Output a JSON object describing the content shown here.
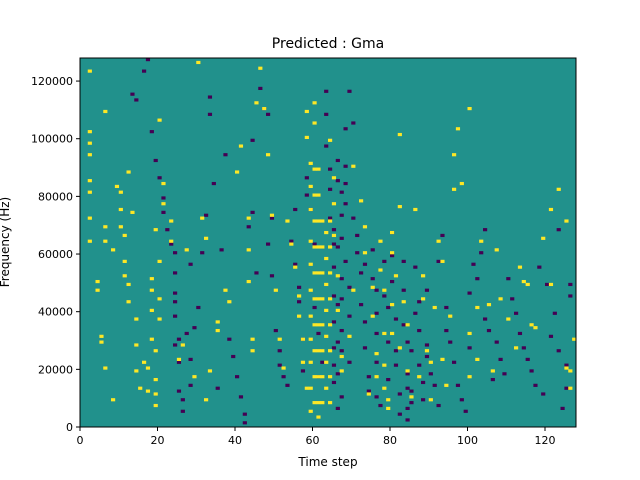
{
  "colors": {
    "background": "#21918c",
    "low": "#440154",
    "high": "#fde725",
    "axis": "#000000"
  },
  "chart_data": {
    "type": "heatmap",
    "title": "Predicted : Gma",
    "xlabel": "Time step",
    "ylabel": "Frequency (Hz)",
    "xlim": [
      0,
      128
    ],
    "ylim": [
      0,
      128000
    ],
    "xticks": [
      0,
      20,
      40,
      60,
      80,
      100,
      120
    ],
    "yticks": [
      0,
      20000,
      40000,
      60000,
      80000,
      100000,
      120000
    ],
    "grid": false,
    "legend": "none",
    "time_steps": 128,
    "frequency_bins": 128,
    "background_value": 0,
    "cell_values": {
      "-1": "low",
      "0": "background",
      "1": "high"
    },
    "high_cells": [
      [
        2,
        102
      ],
      [
        2,
        98
      ],
      [
        2,
        94
      ],
      [
        2,
        85
      ],
      [
        2,
        81
      ],
      [
        2,
        72
      ],
      [
        2,
        64
      ],
      [
        2,
        123
      ],
      [
        4,
        50
      ],
      [
        4,
        47
      ],
      [
        5,
        31
      ],
      [
        5,
        29
      ],
      [
        6,
        20
      ],
      [
        6,
        109
      ],
      [
        6,
        69
      ],
      [
        6,
        64
      ],
      [
        8,
        61
      ],
      [
        8,
        9
      ],
      [
        9,
        83
      ],
      [
        10,
        81
      ],
      [
        10,
        75
      ],
      [
        10,
        69
      ],
      [
        11,
        66
      ],
      [
        11,
        57
      ],
      [
        11,
        52
      ],
      [
        12,
        49
      ],
      [
        12,
        43
      ],
      [
        12,
        88
      ],
      [
        13,
        74
      ],
      [
        14,
        37
      ],
      [
        14,
        19
      ],
      [
        14,
        28
      ],
      [
        15,
        13
      ],
      [
        16,
        22
      ],
      [
        17,
        20
      ],
      [
        17,
        12
      ],
      [
        18,
        51
      ],
      [
        18,
        47
      ],
      [
        18,
        40
      ],
      [
        18,
        30
      ],
      [
        19,
        26
      ],
      [
        19,
        16
      ],
      [
        19,
        11
      ],
      [
        19,
        7
      ],
      [
        19,
        68
      ],
      [
        20,
        57
      ],
      [
        20,
        44
      ],
      [
        20,
        37
      ],
      [
        20,
        106
      ],
      [
        21,
        77
      ],
      [
        21,
        84
      ],
      [
        23,
        64
      ],
      [
        23,
        71
      ],
      [
        25,
        23
      ],
      [
        26,
        28
      ],
      [
        27,
        61
      ],
      [
        29,
        17
      ],
      [
        30,
        126
      ],
      [
        31,
        72
      ],
      [
        32,
        9
      ],
      [
        32,
        65
      ],
      [
        33,
        19
      ],
      [
        35,
        36
      ],
      [
        35,
        33
      ],
      [
        37,
        47
      ],
      [
        38,
        43
      ],
      [
        40,
        88
      ],
      [
        41,
        97
      ],
      [
        43,
        50
      ],
      [
        43,
        72
      ],
      [
        43,
        61
      ],
      [
        44,
        30
      ],
      [
        44,
        26
      ],
      [
        45,
        112
      ],
      [
        46,
        124
      ],
      [
        47,
        110
      ],
      [
        48,
        94
      ],
      [
        49,
        73
      ],
      [
        50,
        47
      ],
      [
        51,
        30
      ],
      [
        52,
        20
      ],
      [
        53,
        71
      ],
      [
        54,
        63
      ],
      [
        55,
        55
      ],
      [
        56,
        38
      ],
      [
        56,
        45
      ],
      [
        57,
        30
      ],
      [
        57,
        22
      ],
      [
        58,
        13
      ],
      [
        58,
        109
      ],
      [
        58,
        100
      ],
      [
        59,
        91
      ],
      [
        59,
        83
      ],
      [
        59,
        75
      ],
      [
        59,
        64
      ],
      [
        59,
        56
      ],
      [
        59,
        47
      ],
      [
        59,
        38
      ],
      [
        59,
        30
      ],
      [
        59,
        22
      ],
      [
        59,
        13
      ],
      [
        59,
        5
      ],
      [
        60,
        89
      ],
      [
        60,
        80
      ],
      [
        60,
        71
      ],
      [
        60,
        62
      ],
      [
        60,
        53
      ],
      [
        60,
        44
      ],
      [
        60,
        35
      ],
      [
        60,
        26
      ],
      [
        60,
        17
      ],
      [
        60,
        8
      ],
      [
        60,
        112
      ],
      [
        60,
        105
      ],
      [
        61,
        89
      ],
      [
        61,
        80
      ],
      [
        61,
        71
      ],
      [
        61,
        62
      ],
      [
        61,
        53
      ],
      [
        61,
        44
      ],
      [
        61,
        35
      ],
      [
        61,
        26
      ],
      [
        61,
        17
      ],
      [
        61,
        8
      ],
      [
        61,
        3
      ],
      [
        62,
        71
      ],
      [
        62,
        62
      ],
      [
        62,
        53
      ],
      [
        62,
        44
      ],
      [
        62,
        35
      ],
      [
        62,
        26
      ],
      [
        62,
        17
      ],
      [
        62,
        8
      ],
      [
        63,
        67
      ],
      [
        63,
        58
      ],
      [
        63,
        49
      ],
      [
        63,
        40
      ],
      [
        63,
        31
      ],
      [
        63,
        22
      ],
      [
        63,
        13
      ],
      [
        64,
        71
      ],
      [
        64,
        62
      ],
      [
        64,
        53
      ],
      [
        64,
        44
      ],
      [
        64,
        35
      ],
      [
        64,
        26
      ],
      [
        64,
        17
      ],
      [
        64,
        8
      ],
      [
        64,
        99
      ],
      [
        65,
        86
      ],
      [
        65,
        77
      ],
      [
        65,
        66
      ],
      [
        66,
        52
      ],
      [
        66,
        40
      ],
      [
        67,
        24
      ],
      [
        67,
        19
      ],
      [
        69,
        31
      ],
      [
        70,
        47
      ],
      [
        70,
        90
      ],
      [
        72,
        78
      ],
      [
        73,
        60
      ],
      [
        73,
        69
      ],
      [
        74,
        11
      ],
      [
        75,
        48
      ],
      [
        75,
        38
      ],
      [
        76,
        25
      ],
      [
        76,
        17
      ],
      [
        77,
        64
      ],
      [
        77,
        54
      ],
      [
        78,
        47
      ],
      [
        78,
        32
      ],
      [
        78,
        21
      ],
      [
        78,
        13
      ],
      [
        79,
        9
      ],
      [
        79,
        6
      ],
      [
        80,
        42
      ],
      [
        80,
        32
      ],
      [
        80,
        67
      ],
      [
        80,
        60
      ],
      [
        81,
        52
      ],
      [
        82,
        27
      ],
      [
        82,
        101
      ],
      [
        82,
        76
      ],
      [
        83,
        43
      ],
      [
        84,
        35
      ],
      [
        84,
        19
      ],
      [
        85,
        10
      ],
      [
        86,
        75
      ],
      [
        87,
        17
      ],
      [
        88,
        52
      ],
      [
        88,
        44
      ],
      [
        89,
        26
      ],
      [
        90,
        22
      ],
      [
        90,
        9
      ],
      [
        91,
        41
      ],
      [
        92,
        64
      ],
      [
        93,
        57
      ],
      [
        93,
        23
      ],
      [
        94,
        14
      ],
      [
        95,
        38
      ],
      [
        96,
        82
      ],
      [
        96,
        94
      ],
      [
        97,
        103
      ],
      [
        98,
        84
      ],
      [
        100,
        32
      ],
      [
        100,
        110
      ],
      [
        100,
        17
      ],
      [
        102,
        23
      ],
      [
        102,
        41
      ],
      [
        103,
        64
      ],
      [
        105,
        42
      ],
      [
        106,
        19
      ],
      [
        107,
        61
      ],
      [
        108,
        44
      ],
      [
        110,
        37
      ],
      [
        112,
        27
      ],
      [
        113,
        55
      ],
      [
        114,
        50
      ],
      [
        115,
        49
      ],
      [
        116,
        35
      ],
      [
        117,
        34
      ],
      [
        119,
        65
      ],
      [
        121,
        75
      ],
      [
        121,
        49
      ],
      [
        123,
        82
      ],
      [
        125,
        71
      ],
      [
        125,
        20
      ],
      [
        126,
        13
      ],
      [
        126,
        19
      ],
      [
        127,
        30
      ]
    ],
    "low_cells": [
      [
        13,
        115
      ],
      [
        14,
        113
      ],
      [
        16,
        123
      ],
      [
        17,
        127
      ],
      [
        18,
        102
      ],
      [
        19,
        92
      ],
      [
        20,
        86
      ],
      [
        21,
        79
      ],
      [
        21,
        74
      ],
      [
        22,
        68
      ],
      [
        23,
        63
      ],
      [
        24,
        60
      ],
      [
        24,
        53
      ],
      [
        24,
        46
      ],
      [
        24,
        43
      ],
      [
        24,
        38
      ],
      [
        24,
        28
      ],
      [
        25,
        30
      ],
      [
        25,
        12
      ],
      [
        25,
        22
      ],
      [
        26,
        9
      ],
      [
        26,
        5
      ],
      [
        27,
        32
      ],
      [
        28,
        56
      ],
      [
        28,
        23
      ],
      [
        28,
        14
      ],
      [
        29,
        34
      ],
      [
        30,
        41
      ],
      [
        31,
        60
      ],
      [
        32,
        73
      ],
      [
        33,
        114
      ],
      [
        33,
        108
      ],
      [
        34,
        84
      ],
      [
        35,
        13
      ],
      [
        36,
        61
      ],
      [
        37,
        94
      ],
      [
        38,
        30
      ],
      [
        39,
        24
      ],
      [
        40,
        17
      ],
      [
        41,
        10
      ],
      [
        42,
        4
      ],
      [
        42,
        1
      ],
      [
        43,
        69
      ],
      [
        44,
        74
      ],
      [
        44,
        99
      ],
      [
        45,
        53
      ],
      [
        46,
        117
      ],
      [
        47,
        110
      ],
      [
        48,
        63
      ],
      [
        48,
        108
      ],
      [
        49,
        72
      ],
      [
        49,
        52
      ],
      [
        50,
        33
      ],
      [
        51,
        26
      ],
      [
        51,
        21
      ],
      [
        52,
        17
      ],
      [
        53,
        14
      ],
      [
        54,
        64
      ],
      [
        55,
        75
      ],
      [
        55,
        56
      ],
      [
        56,
        48
      ],
      [
        56,
        43
      ],
      [
        57,
        30
      ],
      [
        57,
        19
      ],
      [
        58,
        86
      ],
      [
        58,
        80
      ],
      [
        59,
        75
      ],
      [
        60,
        63
      ],
      [
        60,
        41
      ],
      [
        61,
        32
      ],
      [
        61,
        17
      ],
      [
        62,
        22
      ],
      [
        63,
        108
      ],
      [
        63,
        97
      ],
      [
        63,
        116
      ],
      [
        64,
        89
      ],
      [
        64,
        82
      ],
      [
        64,
        72
      ],
      [
        65,
        68
      ],
      [
        65,
        63
      ],
      [
        65,
        55
      ],
      [
        65,
        45
      ],
      [
        65,
        36
      ],
      [
        65,
        27
      ],
      [
        65,
        21
      ],
      [
        65,
        15
      ],
      [
        66,
        92
      ],
      [
        66,
        85
      ],
      [
        66,
        62
      ],
      [
        66,
        42
      ],
      [
        66,
        29
      ],
      [
        66,
        18
      ],
      [
        66,
        6
      ],
      [
        67,
        81
      ],
      [
        67,
        73
      ],
      [
        67,
        65
      ],
      [
        67,
        51
      ],
      [
        67,
        44
      ],
      [
        67,
        33
      ],
      [
        67,
        26
      ],
      [
        67,
        10
      ],
      [
        68,
        103
      ],
      [
        68,
        90
      ],
      [
        68,
        84
      ],
      [
        68,
        77
      ],
      [
        68,
        57
      ],
      [
        69,
        48
      ],
      [
        69,
        38
      ],
      [
        69,
        22
      ],
      [
        69,
        116
      ],
      [
        70,
        105
      ],
      [
        70,
        72
      ],
      [
        71,
        60
      ],
      [
        71,
        66
      ],
      [
        72,
        42
      ],
      [
        72,
        53
      ],
      [
        73,
        56
      ],
      [
        73,
        36
      ],
      [
        73,
        27
      ],
      [
        74,
        17
      ],
      [
        74,
        12
      ],
      [
        75,
        61
      ],
      [
        75,
        51
      ],
      [
        76,
        47
      ],
      [
        76,
        39
      ],
      [
        76,
        32
      ],
      [
        76,
        22
      ],
      [
        76,
        10
      ],
      [
        77,
        7
      ],
      [
        78,
        57
      ],
      [
        78,
        45
      ],
      [
        79,
        41
      ],
      [
        79,
        29
      ],
      [
        79,
        16
      ],
      [
        80,
        67
      ],
      [
        80,
        59
      ],
      [
        80,
        50
      ],
      [
        81,
        37
      ],
      [
        81,
        26
      ],
      [
        81,
        21
      ],
      [
        82,
        11
      ],
      [
        82,
        4
      ],
      [
        83,
        57
      ],
      [
        83,
        47
      ],
      [
        83,
        35
      ],
      [
        84,
        29
      ],
      [
        84,
        18
      ],
      [
        84,
        13
      ],
      [
        84,
        6
      ],
      [
        84,
        2
      ],
      [
        85,
        26
      ],
      [
        85,
        12
      ],
      [
        85,
        8
      ],
      [
        86,
        55
      ],
      [
        86,
        39
      ],
      [
        87,
        43
      ],
      [
        87,
        33
      ],
      [
        87,
        21
      ],
      [
        88,
        15
      ],
      [
        88,
        9
      ],
      [
        89,
        47
      ],
      [
        89,
        28
      ],
      [
        89,
        24
      ],
      [
        90,
        18
      ],
      [
        91,
        14
      ],
      [
        92,
        57
      ],
      [
        92,
        7
      ],
      [
        93,
        66
      ],
      [
        94,
        41
      ],
      [
        94,
        33
      ],
      [
        95,
        29
      ],
      [
        96,
        22
      ],
      [
        97,
        14
      ],
      [
        98,
        9
      ],
      [
        99,
        5
      ],
      [
        100,
        46
      ],
      [
        100,
        27
      ],
      [
        101,
        56
      ],
      [
        102,
        51
      ],
      [
        103,
        60
      ],
      [
        104,
        37
      ],
      [
        104,
        68
      ],
      [
        105,
        33
      ],
      [
        106,
        16
      ],
      [
        107,
        29
      ],
      [
        108,
        23
      ],
      [
        109,
        18
      ],
      [
        110,
        51
      ],
      [
        111,
        44
      ],
      [
        112,
        39
      ],
      [
        113,
        32
      ],
      [
        114,
        27
      ],
      [
        115,
        23
      ],
      [
        116,
        19
      ],
      [
        117,
        14
      ],
      [
        118,
        55
      ],
      [
        119,
        11
      ],
      [
        120,
        49
      ],
      [
        121,
        31
      ],
      [
        122,
        39
      ],
      [
        123,
        26
      ],
      [
        123,
        68
      ],
      [
        124,
        6
      ],
      [
        125,
        21
      ],
      [
        125,
        13
      ],
      [
        126,
        45
      ],
      [
        126,
        49
      ]
    ]
  }
}
